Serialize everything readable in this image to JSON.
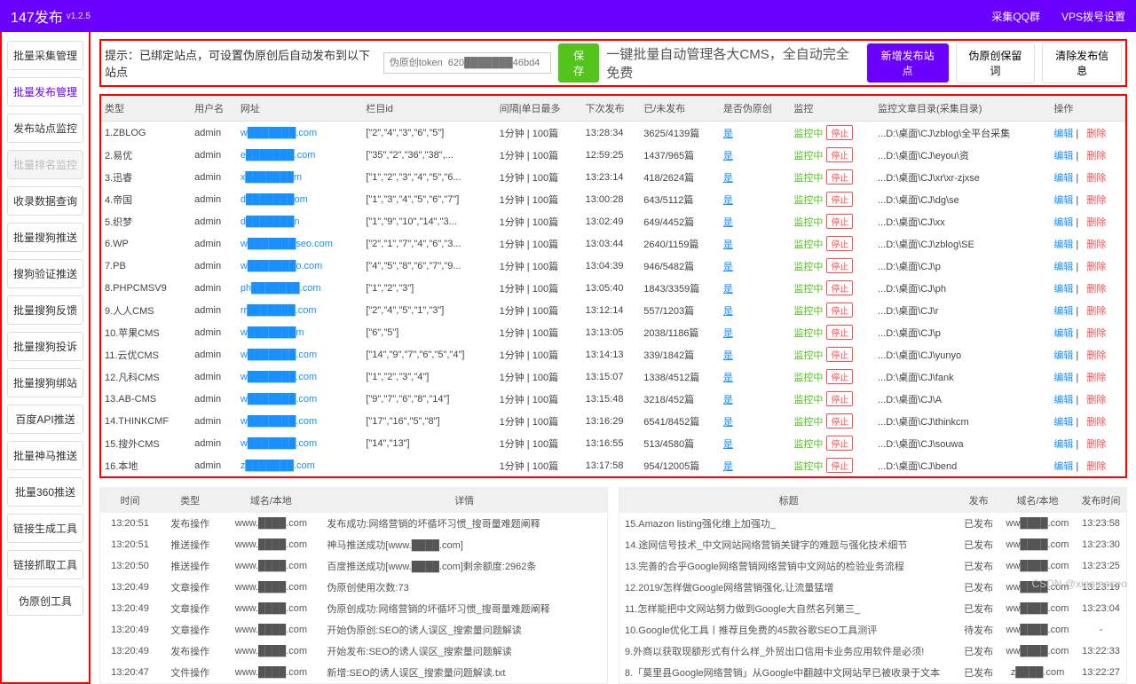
{
  "header": {
    "title": "147发布",
    "version": "v1.2.5",
    "link1": "采集QQ群",
    "link2": "VPS拨号设置"
  },
  "sidebar": [
    {
      "label": "批量采集管理",
      "active": false
    },
    {
      "label": "批量发布管理",
      "active": true
    },
    {
      "label": "发布站点监控",
      "active": false
    },
    {
      "label": "批量排名监控",
      "disabled": true
    },
    {
      "label": "收录数据查询",
      "active": false
    },
    {
      "label": "批量搜狗推送",
      "active": false
    },
    {
      "label": "搜狗验证推送",
      "active": false
    },
    {
      "label": "批量搜狗反馈",
      "active": false
    },
    {
      "label": "批量搜狗投诉",
      "active": false
    },
    {
      "label": "批量搜狗绑站",
      "active": false
    },
    {
      "label": "百度API推送",
      "active": false
    },
    {
      "label": "批量神马推送",
      "active": false
    },
    {
      "label": "批量360推送",
      "active": false
    },
    {
      "label": "链接生成工具",
      "active": false
    },
    {
      "label": "链接抓取工具",
      "active": false
    },
    {
      "label": "伪原创工具",
      "active": false
    }
  ],
  "tipbar": {
    "tip": "提示：已绑定站点，可设置伪原创后自动发布到以下站点",
    "token_ph": "伪原创token  620███████46bd4",
    "save": "保存",
    "big": "一键批量自动管理各大CMS，全自动完全免费",
    "add": "新增发布站点",
    "keep": "伪原创保留词",
    "clear": "清除发布信息"
  },
  "grid": {
    "cols": [
      "类型",
      "用户名",
      "网址",
      "栏目id",
      "间隔|单日最多",
      "下次发布",
      "已/未发布",
      "是否伪原创",
      "监控",
      "监控文章目录(采集目录)",
      "操作"
    ],
    "mon_on": "监控中",
    "mon_stop": "停止",
    "op_edit": "编辑",
    "op_del": "删除",
    "yc": "是",
    "rows": [
      {
        "type": "1.ZBLOG",
        "user": "admin",
        "url": "w███████.com",
        "col": "[\"2\",\"4\",\"3\",\"6\",\"5\"]",
        "interval": "1分钟 | 100篇",
        "next": "13:28:34",
        "pub": "3625/4139篇",
        "dir": "...D:\\桌面\\CJ\\zblog\\全平台采集"
      },
      {
        "type": "2.易优",
        "user": "admin",
        "url": "e███████.com",
        "col": "[\"35\",\"2\",\"36\",\"38\",...",
        "interval": "1分钟 | 100篇",
        "next": "12:59:25",
        "pub": "1437/965篇",
        "dir": "...D:\\桌面\\CJ\\eyou\\资"
      },
      {
        "type": "3.迅睿",
        "user": "admin",
        "url": "x███████m",
        "col": "[\"1\",\"2\",\"3\",\"4\",\"5\",\"6...",
        "interval": "1分钟 | 100篇",
        "next": "13:23:14",
        "pub": "418/2624篇",
        "dir": "...D:\\桌面\\CJ\\xr\\xr-zjxse"
      },
      {
        "type": "4.帝国",
        "user": "admin",
        "url": "d███████om",
        "col": "[\"1\",\"3\",\"4\",\"5\",\"6\",\"7\"]",
        "interval": "1分钟 | 100篇",
        "next": "13:00:28",
        "pub": "643/5112篇",
        "dir": "...D:\\桌面\\CJ\\dg\\se"
      },
      {
        "type": "5.织梦",
        "user": "admin",
        "url": "d███████n",
        "col": "[\"1\",\"9\",\"10\",\"14\",\"3...",
        "interval": "1分钟 | 100篇",
        "next": "13:02:49",
        "pub": "649/4452篇",
        "dir": "...D:\\桌面\\CJ\\xx"
      },
      {
        "type": "6.WP",
        "user": "admin",
        "url": "w███████seo.com",
        "col": "[\"2\",\"1\",\"7\",\"4\",\"6\",\"3...",
        "interval": "1分钟 | 100篇",
        "next": "13:03:44",
        "pub": "2640/1159篇",
        "dir": "...D:\\桌面\\CJ\\zblog\\SE"
      },
      {
        "type": "7.PB",
        "user": "admin",
        "url": "w███████o.com",
        "col": "[\"4\",\"5\",\"8\",\"6\",\"7\",\"9...",
        "interval": "1分钟 | 100篇",
        "next": "13:04:39",
        "pub": "946/5482篇",
        "dir": "...D:\\桌面\\CJ\\p"
      },
      {
        "type": "8.PHPCMSV9",
        "user": "admin",
        "url": "ph███████.com",
        "col": "[\"1\",\"2\",\"3\"]",
        "interval": "1分钟 | 100篇",
        "next": "13:05:40",
        "pub": "1843/3359篇",
        "dir": "...D:\\桌面\\CJ\\ph"
      },
      {
        "type": "9.人人CMS",
        "user": "admin",
        "url": "rr███████.com",
        "col": "[\"2\",\"4\",\"5\",\"1\",\"3\"]",
        "interval": "1分钟 | 100篇",
        "next": "13:12:14",
        "pub": "557/1203篇",
        "dir": "...D:\\桌面\\CJ\\r"
      },
      {
        "type": "10.苹果CMS",
        "user": "admin",
        "url": "w███████m",
        "col": "[\"6\",\"5\"]",
        "interval": "1分钟 | 100篇",
        "next": "13:13:05",
        "pub": "2038/1186篇",
        "dir": "...D:\\桌面\\CJ\\p"
      },
      {
        "type": "11.云优CMS",
        "user": "admin",
        "url": "w███████.com",
        "col": "[\"14\",\"9\",\"7\",\"6\",\"5\",\"4\"]",
        "interval": "1分钟 | 100篇",
        "next": "13:14:13",
        "pub": "339/1842篇",
        "dir": "...D:\\桌面\\CJ\\yunyo"
      },
      {
        "type": "12.凡科CMS",
        "user": "admin",
        "url": "w███████.com",
        "col": "[\"1\",\"2\",\"3\",\"4\"]",
        "interval": "1分钟 | 100篇",
        "next": "13:15:07",
        "pub": "1338/4512篇",
        "dir": "...D:\\桌面\\CJ\\fank"
      },
      {
        "type": "13.AB-CMS",
        "user": "admin",
        "url": "w███████.com",
        "col": "[\"9\",\"7\",\"6\",\"8\",\"14\"]",
        "interval": "1分钟 | 100篇",
        "next": "13:15:48",
        "pub": "3218/452篇",
        "dir": "...D:\\桌面\\CJ\\A"
      },
      {
        "type": "14.THINKCMF",
        "user": "admin",
        "url": "w███████.com",
        "col": "[\"17\",\"16\",\"5\",\"8\"]",
        "interval": "1分钟 | 100篇",
        "next": "13:16:29",
        "pub": "6541/8452篇",
        "dir": "...D:\\桌面\\CJ\\thinkcm"
      },
      {
        "type": "15.搜外CMS",
        "user": "admin",
        "url": "w███████.com",
        "col": "[\"14\",\"13\"]",
        "interval": "1分钟 | 100篇",
        "next": "13:16:55",
        "pub": "513/4580篇",
        "dir": "...D:\\桌面\\CJ\\souwa"
      },
      {
        "type": "16.本地",
        "user": "admin",
        "url": "z███████.com",
        "col": "",
        "interval": "1分钟 | 100篇",
        "next": "13:17:58",
        "pub": "954/12005篇",
        "dir": "...D:\\桌面\\CJ\\bend"
      }
    ]
  },
  "log_left": {
    "cols": [
      "时间",
      "类型",
      "域名/本地",
      "详情"
    ],
    "rows": [
      {
        "t": "13:20:51",
        "k": "发布操作",
        "d": "www.████.com",
        "x": "发布成功:网络营销的坏循坏习惯_搜哥量难题阐释"
      },
      {
        "t": "13:20:51",
        "k": "推送操作",
        "d": "www.████.com",
        "x": "神马推送成功[www.████.com]"
      },
      {
        "t": "13:20:50",
        "k": "推送操作",
        "d": "www.████.com",
        "x": "百度推送成功[www.████.com]剩余额度:2962条"
      },
      {
        "t": "13:20:49",
        "k": "文章操作",
        "d": "www.████.com",
        "x": "伪原创使用次数:73"
      },
      {
        "t": "13:20:49",
        "k": "文章操作",
        "d": "www.████.com",
        "x": "伪原创成功:网络营销的坏循坏习惯_搜哥量难题阐释"
      },
      {
        "t": "13:20:49",
        "k": "文章操作",
        "d": "www.████.com",
        "x": "开始伪原创:SEO的诱人误区_搜索量问题解读"
      },
      {
        "t": "13:20:49",
        "k": "发布操作",
        "d": "www.████.com",
        "x": "开始发布:SEO的诱人误区_搜索量问题解读"
      },
      {
        "t": "13:20:47",
        "k": "文件操作",
        "d": "www.████.com",
        "x": "新增:SEO的诱人误区_搜索量问题解读.txt"
      }
    ]
  },
  "log_right": {
    "cols": [
      "标题",
      "发布",
      "域名/本地",
      "发布时间"
    ],
    "rows": [
      {
        "t": "15.Amazon listing强化维上加强功_",
        "p": "已发布",
        "d": "ww████.com",
        "x": "13:23:58"
      },
      {
        "t": "14.途网信号技术_中文网站网络营销关键字的难题与强化技术细节",
        "p": "已发布",
        "d": "ww████.com",
        "x": "13:23:30"
      },
      {
        "t": "13.完善的合乎Google网络营销网络营销中文网站的检验业务流程",
        "p": "已发布",
        "d": "ww████.com",
        "x": "13:23:25"
      },
      {
        "t": "12.2019/怎样做Google网络营销强化,让流量猛增",
        "p": "已发布",
        "d": "ww████.com",
        "x": "13:23:19"
      },
      {
        "t": "11.怎样能把中文网站努力做到Google大自然名列第三_",
        "p": "已发布",
        "d": "ww████.com",
        "x": "13:23:04"
      },
      {
        "t": "10.Google优化工具丨推荐且免费的45款谷歌SEO工具测评",
        "p": "待发布",
        "d": "ww████.com",
        "x": "-"
      },
      {
        "t": "9.外商以获取现额形式有什么样_外贸出口信用卡业务应用软件是必须!",
        "p": "已发布",
        "d": "ww████.com",
        "x": "13:22:33"
      },
      {
        "t": "8.「莫里县Google网络营销」从Google中翻越中文网站早已被收录于文本",
        "p": "已发布",
        "d": "z████.com",
        "x": "13:22:27"
      }
    ]
  },
  "watermark": "CSDN @xiaomaseo"
}
